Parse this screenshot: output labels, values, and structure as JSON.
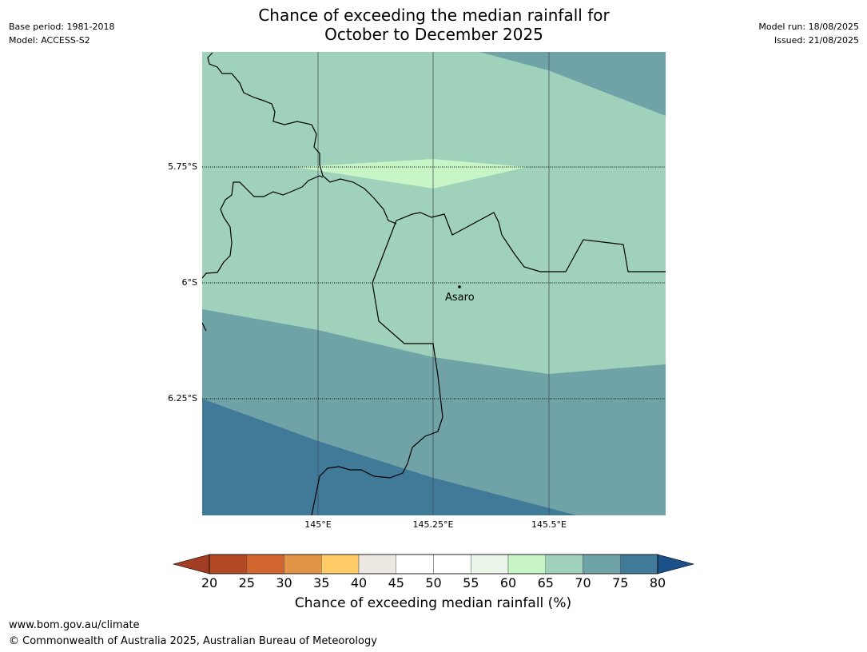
{
  "header": {
    "base_period": "Base period: 1981-2018",
    "model": "Model: ACCESS-S2",
    "model_run": "Model run: 18/08/2025",
    "issued": "Issued: 21/08/2025",
    "title_line1": "Chance of exceeding the median rainfall for",
    "title_line2": "October to December 2025"
  },
  "map": {
    "latitude_labels": [
      "5.75°S",
      "6°S",
      "6.25°S"
    ],
    "longitude_labels": [
      "145°E",
      "145.25°E",
      "145.5°E"
    ],
    "place": {
      "name": "Asaro"
    },
    "region_colors": {
      "band_60_65": "#c8f5c6",
      "band_65_70": "#9fd1bb",
      "band_70_75": "#6fa3a7",
      "band_75_80": "#407a98"
    }
  },
  "colorbar": {
    "title": "Chance of exceeding median rainfall (%)",
    "ticks": [
      "20",
      "25",
      "30",
      "35",
      "40",
      "45",
      "50",
      "55",
      "60",
      "65",
      "70",
      "75",
      "80"
    ],
    "colors": [
      "#a23c22",
      "#b34a24",
      "#d1672f",
      "#e19445",
      "#fdcc66",
      "#ede8e2",
      "#ffffff",
      "#ffffff",
      "#eaf6e9",
      "#c8f5c6",
      "#9fd1bb",
      "#6fa3a7",
      "#407a98",
      "#1b5089"
    ]
  },
  "footer": {
    "website": "www.bom.gov.au/climate",
    "copyright": "© Commonwealth of Australia 2025, Australian Bureau of Meteorology"
  }
}
